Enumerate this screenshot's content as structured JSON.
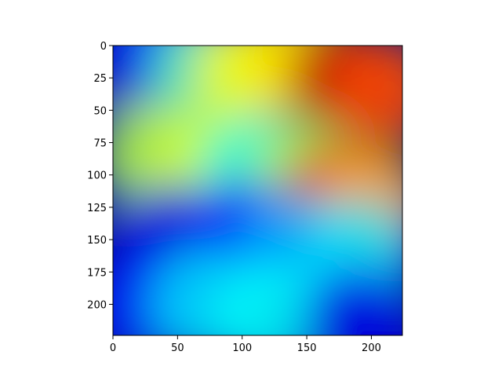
{
  "chart_data": {
    "type": "heatmap",
    "description_free": true,
    "image_extent": {
      "x": [
        0,
        224
      ],
      "y": [
        0,
        224
      ]
    },
    "y_axis_inverted": true,
    "x_ticks": [
      0,
      50,
      100,
      150,
      200
    ],
    "y_ticks": [
      0,
      25,
      50,
      75,
      100,
      125,
      150,
      175,
      200
    ],
    "xlabel": "",
    "ylabel": "",
    "title": "",
    "colormap": "jet",
    "grid": false,
    "heat_spots": [
      {
        "x": 10,
        "y": 10,
        "level": 0.05
      },
      {
        "x": 40,
        "y": 5,
        "level": 0.15
      },
      {
        "x": 70,
        "y": 20,
        "level": 0.45
      },
      {
        "x": 105,
        "y": 20,
        "level": 0.62
      },
      {
        "x": 140,
        "y": 10,
        "level": 0.65
      },
      {
        "x": 178,
        "y": 25,
        "level": 0.95
      },
      {
        "x": 210,
        "y": 35,
        "level": 0.8
      },
      {
        "x": 30,
        "y": 85,
        "level": 0.55
      },
      {
        "x": 70,
        "y": 90,
        "level": 0.58
      },
      {
        "x": 110,
        "y": 95,
        "level": 0.4
      },
      {
        "x": 150,
        "y": 100,
        "level": 0.55
      },
      {
        "x": 170,
        "y": 120,
        "level": 0.9
      },
      {
        "x": 200,
        "y": 120,
        "level": 0.7
      },
      {
        "x": 45,
        "y": 150,
        "level": 0.1
      },
      {
        "x": 100,
        "y": 145,
        "level": 0.15
      },
      {
        "x": 140,
        "y": 155,
        "level": 0.3
      },
      {
        "x": 190,
        "y": 160,
        "level": 0.35
      },
      {
        "x": 20,
        "y": 200,
        "level": 0.12
      },
      {
        "x": 70,
        "y": 200,
        "level": 0.35
      },
      {
        "x": 120,
        "y": 210,
        "level": 0.38
      },
      {
        "x": 190,
        "y": 215,
        "level": 0.1
      }
    ]
  }
}
